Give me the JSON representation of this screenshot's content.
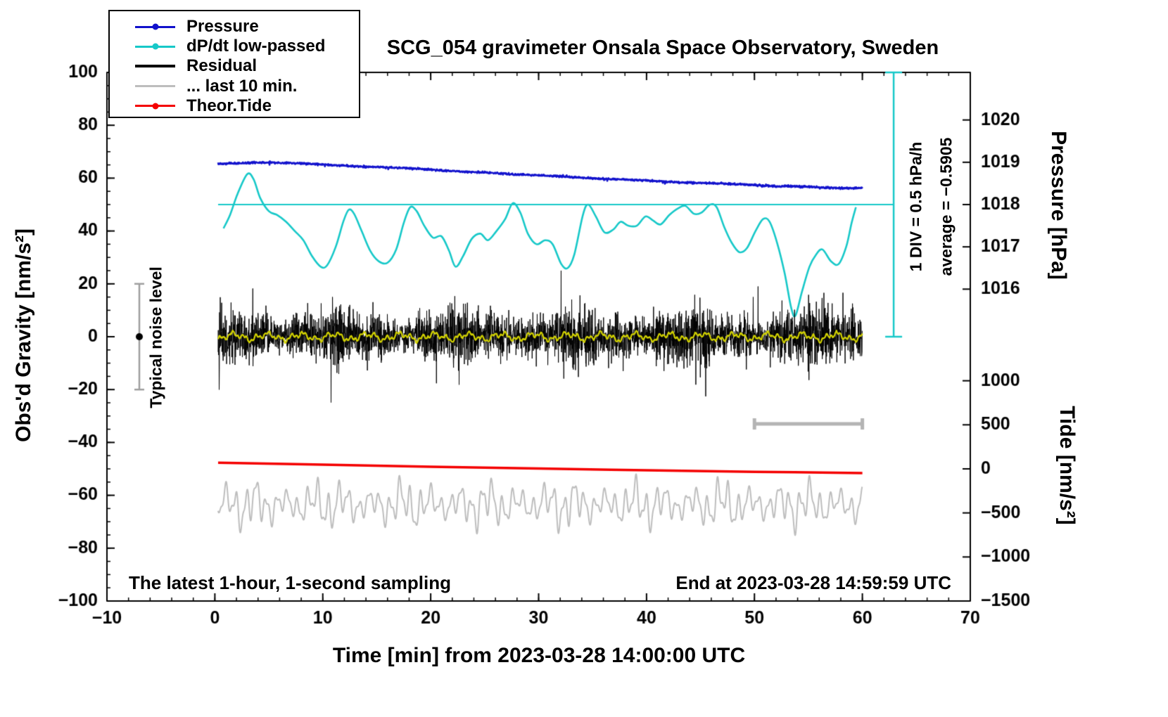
{
  "chart_data": {
    "type": "line",
    "title": "SCG_054 gravimeter Onsala Space Observatory, Sweden",
    "xlabel": "Time [min] from 2023-03-28 14:00:00 UTC",
    "ylabel": "Obs'd Gravity [nm/s²]",
    "y2label_pressure": "Pressure [hPa]",
    "y2label_tide": "Tide [nm/s²]",
    "x_range": [
      -10,
      70
    ],
    "y_range": [
      -100,
      100
    ],
    "x_ticks": [
      -10,
      0,
      10,
      20,
      30,
      40,
      50,
      60,
      70
    ],
    "y_ticks": [
      -100,
      -80,
      -60,
      -40,
      -20,
      0,
      20,
      40,
      60,
      80,
      100
    ],
    "x_minor_step": 2,
    "y_minor_step": 5,
    "grid": false,
    "legend_position": "top-left",
    "pressure_axis": {
      "ticks": [
        1016,
        1017,
        1018,
        1019,
        1020
      ],
      "gravity_at_1018": 50,
      "gravity_per_hpa": 16
    },
    "tide_axis": {
      "ticks": [
        1000,
        500,
        0,
        -500,
        -1000,
        -1500
      ],
      "gravity_at_zero": -50,
      "gravity_per_500": 16.667
    },
    "legend": {
      "items": [
        {
          "label": "Pressure",
          "color": "#1111cc",
          "marker": "dot-line"
        },
        {
          "label": "dP/dt low-passed",
          "color": "#16c8c8",
          "marker": "dot-line"
        },
        {
          "label": "Residual",
          "color": "#000000",
          "marker": "line"
        },
        {
          "label": "... last 10 min.",
          "color": "#bdbdbd",
          "marker": "line"
        },
        {
          "label": "Theor.Tide",
          "color": "#f40000",
          "marker": "dot-line"
        }
      ]
    },
    "annotations": {
      "div_scale": "1 DIV = 0.5 hPa/h",
      "average": "average = −0.5905",
      "noise_label": "Typical noise level",
      "footer_left": "The latest 1-hour, 1-second sampling",
      "footer_right": "End at 2023-03-28 14:59:59 UTC"
    },
    "reference_line": {
      "y": 50,
      "x0": 0.3,
      "x1": 62.9,
      "color": "#16c8c8"
    },
    "scale_bar": {
      "x": 62.9,
      "y0": 0,
      "y1": 100,
      "color": "#16c8c8"
    },
    "noise_bar": {
      "x": -7,
      "y0": -20,
      "y1": 20,
      "dot_y": 0,
      "color": "#9e9e9e",
      "dot_color": "#000000"
    },
    "gray_bar": {
      "x0": 50,
      "x1": 60,
      "y": -33,
      "color": "#b4b4b4"
    },
    "series": {
      "pressure": {
        "color": "#1111cc",
        "width": 2.6,
        "x0": 0.3,
        "x1": 60,
        "dt": 0.033333,
        "noise_std": 0.17,
        "spike_prob": 0.005,
        "spike_size": 1.1,
        "seed": 7,
        "points": [
          [
            0.3,
            65.4
          ],
          [
            2,
            65.6
          ],
          [
            4,
            65.9
          ],
          [
            6,
            65.8
          ],
          [
            8,
            65.6
          ],
          [
            10,
            65.2
          ],
          [
            12,
            64.7
          ],
          [
            14,
            64.3
          ],
          [
            16,
            64.1
          ],
          [
            18,
            63.7
          ],
          [
            20,
            63.2
          ],
          [
            22,
            62.7
          ],
          [
            24,
            62.3
          ],
          [
            26,
            61.9
          ],
          [
            28,
            61.4
          ],
          [
            30,
            61.1
          ],
          [
            32,
            60.7
          ],
          [
            34,
            60.1
          ],
          [
            36,
            59.7
          ],
          [
            38,
            59.5
          ],
          [
            40,
            59.1
          ],
          [
            42,
            58.6
          ],
          [
            44,
            58.3
          ],
          [
            46,
            58.1
          ],
          [
            48,
            57.8
          ],
          [
            50,
            57.4
          ],
          [
            52,
            56.9
          ],
          [
            54,
            56.9
          ],
          [
            56,
            56.5
          ],
          [
            58,
            56.2
          ],
          [
            60,
            56.3
          ]
        ]
      },
      "dpdt": {
        "color": "#16c8c8",
        "width": 2.6,
        "points": [
          [
            0.8,
            41
          ],
          [
            1.4,
            46
          ],
          [
            2.1,
            54
          ],
          [
            3.0,
            61.5
          ],
          [
            3.6,
            59.5
          ],
          [
            4.2,
            52.5
          ],
          [
            5.0,
            47.5
          ],
          [
            5.8,
            46
          ],
          [
            6.6,
            43.5
          ],
          [
            7.4,
            40
          ],
          [
            8.2,
            36.5
          ],
          [
            9.0,
            30.5
          ],
          [
            9.8,
            26.5
          ],
          [
            10.4,
            27
          ],
          [
            11.2,
            34
          ],
          [
            11.9,
            43.5
          ],
          [
            12.4,
            48
          ],
          [
            12.9,
            46.5
          ],
          [
            13.6,
            40
          ],
          [
            14.4,
            32.5
          ],
          [
            15.2,
            28.5
          ],
          [
            16.0,
            28
          ],
          [
            16.8,
            33
          ],
          [
            17.5,
            43
          ],
          [
            18.1,
            49
          ],
          [
            18.7,
            47.5
          ],
          [
            19.4,
            42
          ],
          [
            20.2,
            37.5
          ],
          [
            21.0,
            38
          ],
          [
            21.7,
            32.5
          ],
          [
            22.3,
            26.5
          ],
          [
            23.0,
            30.5
          ],
          [
            23.8,
            37
          ],
          [
            24.6,
            39
          ],
          [
            25.3,
            36.5
          ],
          [
            26.1,
            40
          ],
          [
            26.9,
            44.5
          ],
          [
            27.6,
            50.5
          ],
          [
            28.3,
            47
          ],
          [
            29.0,
            39
          ],
          [
            29.8,
            35
          ],
          [
            30.6,
            36.5
          ],
          [
            31.3,
            35
          ],
          [
            32.1,
            27.5
          ],
          [
            32.7,
            26
          ],
          [
            33.3,
            31
          ],
          [
            34.1,
            46
          ],
          [
            34.6,
            50
          ],
          [
            35.3,
            45.5
          ],
          [
            36.1,
            39.5
          ],
          [
            36.9,
            40.5
          ],
          [
            37.6,
            43.5
          ],
          [
            38.3,
            42
          ],
          [
            39.1,
            42
          ],
          [
            39.9,
            45.5
          ],
          [
            40.6,
            44
          ],
          [
            41.3,
            42.5
          ],
          [
            42.1,
            46
          ],
          [
            42.9,
            48.5
          ],
          [
            43.6,
            49.5
          ],
          [
            44.4,
            46.5
          ],
          [
            45.1,
            47
          ],
          [
            45.9,
            50
          ],
          [
            46.5,
            49
          ],
          [
            47.2,
            41.5
          ],
          [
            47.9,
            35.5
          ],
          [
            48.6,
            32
          ],
          [
            49.3,
            33.5
          ],
          [
            50.1,
            40
          ],
          [
            50.8,
            44.5
          ],
          [
            51.4,
            43.5
          ],
          [
            52.1,
            35.5
          ],
          [
            52.8,
            24
          ],
          [
            53.4,
            11
          ],
          [
            53.8,
            8
          ],
          [
            54.4,
            17
          ],
          [
            55.1,
            26.5
          ],
          [
            55.7,
            31
          ],
          [
            56.3,
            33
          ],
          [
            57.1,
            28.5
          ],
          [
            57.8,
            27.5
          ],
          [
            58.5,
            34
          ],
          [
            59.0,
            43
          ],
          [
            59.4,
            49
          ]
        ]
      },
      "residual": {
        "color": "#000000",
        "width": 1,
        "x0": 0.3,
        "x1": 60,
        "dt": 0.016667,
        "std": 4.4,
        "spike_prob": 0.012,
        "spike_scale": 2.3,
        "clamp": 25,
        "seed": 42
      },
      "residual_lp": {
        "color": "#d2d200",
        "width": 2.2,
        "x0": 0.3,
        "x1": 60,
        "dt": 0.05,
        "components": [
          [
            1.0,
            3.1
          ],
          [
            0.8,
            1.1
          ],
          [
            0.5,
            0.42
          ]
        ],
        "noise": 0.12,
        "seed": 5
      },
      "last10": {
        "color": "#bdbdbd",
        "width": 2,
        "x0": 0.3,
        "x1": 60,
        "dt": 0.02,
        "center": -63.5,
        "components": [
          [
            4.5,
            0.95
          ],
          [
            3.0,
            2.7
          ],
          [
            2.0,
            0.5
          ]
        ],
        "mod": [
          0.3,
          7.3
        ],
        "seed": 9
      },
      "tide": {
        "color": "#f40000",
        "width": 3.5,
        "points": [
          [
            0.3,
            -47.7
          ],
          [
            10,
            -48.4
          ],
          [
            20,
            -49.2
          ],
          [
            30,
            -49.9
          ],
          [
            40,
            -50.5
          ],
          [
            50,
            -51.1
          ],
          [
            60,
            -51.6
          ]
        ]
      }
    }
  }
}
